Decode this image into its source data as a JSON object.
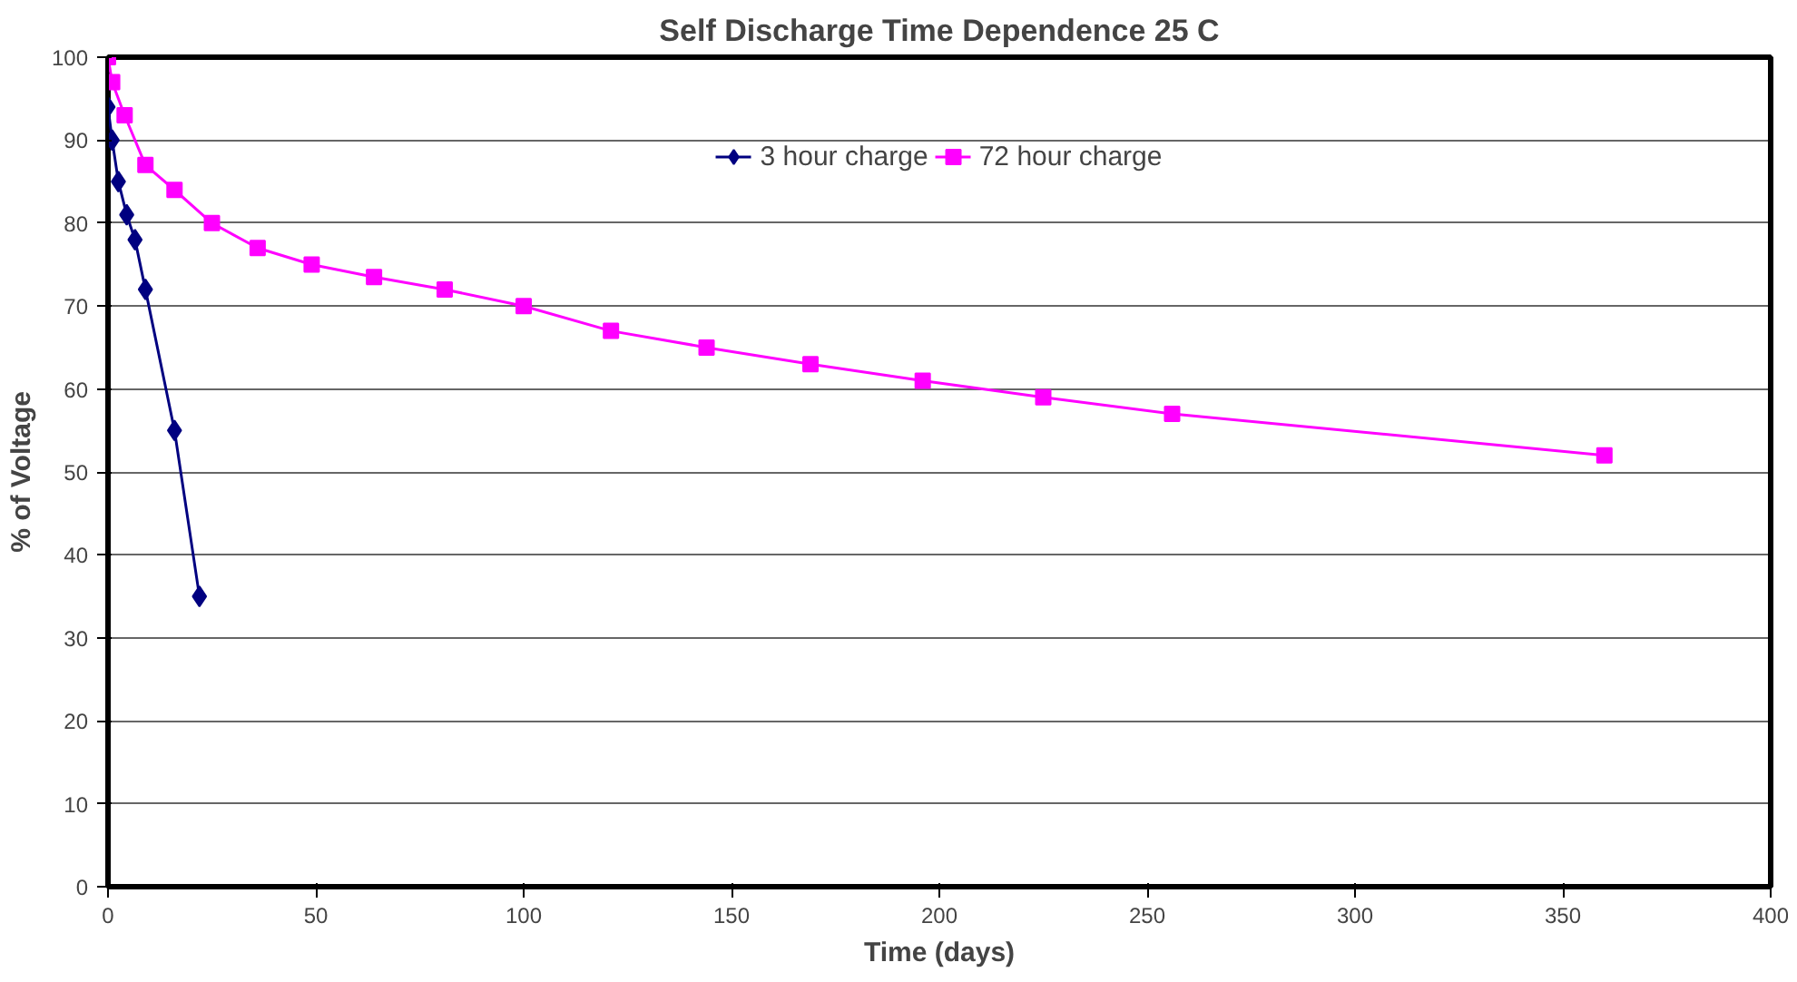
{
  "chart_data": {
    "type": "line",
    "title": "Self Discharge Time Dependence 25 C",
    "xlabel": "Time (days)",
    "ylabel": "% of Voltage",
    "xlim": [
      0,
      400
    ],
    "xticks": [
      0,
      50,
      100,
      150,
      200,
      250,
      300,
      350,
      400
    ],
    "ylim": [
      0,
      100
    ],
    "yticks": [
      0,
      10,
      20,
      30,
      40,
      50,
      60,
      70,
      80,
      90,
      100
    ],
    "grid": "y",
    "legend": "top",
    "series": [
      {
        "name": "3 hour charge",
        "color": "#000080",
        "marker": "diamond",
        "x": [
          0,
          1,
          2.5,
          4.5,
          6.5,
          9,
          16,
          22
        ],
        "values": [
          94,
          90,
          85,
          81,
          78,
          72,
          55,
          35
        ]
      },
      {
        "name": "72 hour charge",
        "color": "#ff00ff",
        "marker": "square",
        "x": [
          0,
          1,
          4,
          9,
          16,
          25,
          36,
          49,
          64,
          81,
          100,
          121,
          144,
          169,
          196,
          225,
          256,
          360
        ],
        "values": [
          100,
          97,
          93,
          87,
          84,
          80,
          77,
          75,
          73.5,
          72,
          70,
          67,
          65,
          63,
          61,
          59,
          57,
          52
        ]
      }
    ]
  }
}
